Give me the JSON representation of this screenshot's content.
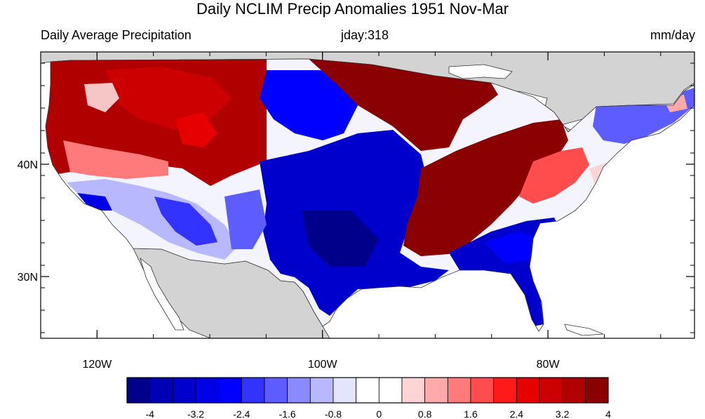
{
  "title": "Daily NCLIM Precip Anomalies 1951 Nov-Mar",
  "left_label": "Daily Average Precipitation",
  "center_label": "jday:318",
  "right_label": "mm/day",
  "map": {
    "lon_range": [
      -125,
      -67
    ],
    "lat_range": [
      24.5,
      50
    ],
    "x_ticks": [
      {
        "value": -120,
        "label": "120W"
      },
      {
        "value": -100,
        "label": "100W"
      },
      {
        "value": -80,
        "label": "80W"
      }
    ],
    "y_ticks": [
      {
        "value": 40,
        "label": "40N"
      },
      {
        "value": 30,
        "label": "30N"
      }
    ],
    "land_color": "#d3d3d3",
    "water_color": "#ffffff"
  },
  "colorbar": {
    "colors": [
      "#00008b",
      "#0000b4",
      "#0000cd",
      "#0000e6",
      "#0000ff",
      "#3333ff",
      "#5c5cff",
      "#8a8aff",
      "#b8b8ff",
      "#e4e4ff",
      "#ffffff",
      "#ffffff",
      "#ffd4d4",
      "#ffaaaa",
      "#ff7a7a",
      "#ff4c4c",
      "#ff1a1a",
      "#e60000",
      "#cc0000",
      "#b00000",
      "#8b0000"
    ],
    "labels": [
      "-4",
      "-3.2",
      "-2.4",
      "-1.6",
      "-0.8",
      "0",
      "0.8",
      "1.6",
      "2.4",
      "3.2",
      "4"
    ]
  }
}
